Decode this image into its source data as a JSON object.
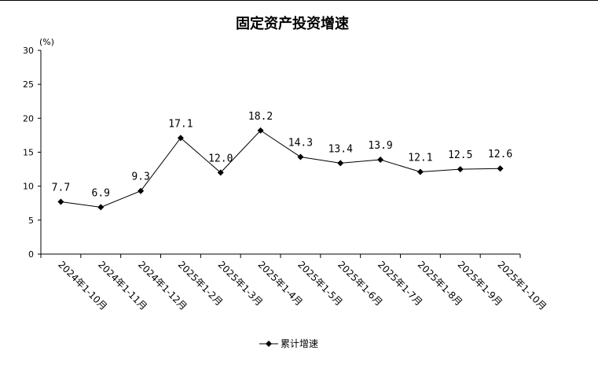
{
  "chart_data": {
    "type": "line",
    "title": "固定资产投资增速",
    "unit_label": "(%)",
    "ylim": [
      0,
      30
    ],
    "yticks": [
      0,
      5,
      10,
      15,
      20,
      25,
      30
    ],
    "categories": [
      "2024年1-10月",
      "2024年1-11月",
      "2024年1-12月",
      "2025年1-2月",
      "2025年1-3月",
      "2025年1-4月",
      "2025年1-5月",
      "2025年1-6月",
      "2025年1-7月",
      "2025年1-8月",
      "2025年1-9月",
      "2025年1-10月"
    ],
    "series": [
      {
        "name": "累计增速",
        "values": [
          7.7,
          6.9,
          9.3,
          17.1,
          12.0,
          18.2,
          14.3,
          13.4,
          13.9,
          12.1,
          12.5,
          12.6
        ],
        "labels": [
          "7.7",
          "6.9",
          "9.3",
          "17.1",
          "12.0",
          "18.2",
          "14.3",
          "13.4",
          "13.9",
          "12.1",
          "12.5",
          "12.6"
        ]
      }
    ],
    "grid": false,
    "legend_position": "bottom-center"
  }
}
